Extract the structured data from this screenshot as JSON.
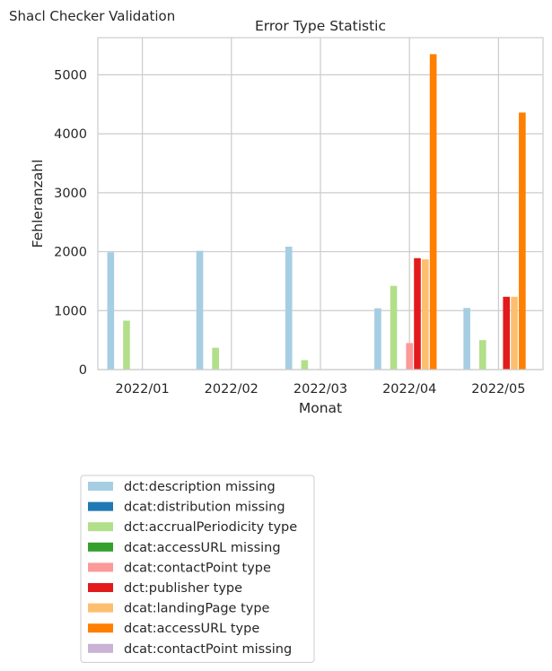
{
  "page": {
    "title": "Shacl Checker Validation"
  },
  "chart_data": {
    "type": "bar",
    "title": "Error Type Statistic",
    "xlabel": "Monat",
    "ylabel": "Fehleranzahl",
    "categories": [
      "2022/01",
      "2022/02",
      "2022/03",
      "2022/04",
      "2022/05"
    ],
    "ylim": [
      0,
      5630
    ],
    "yticks": [
      0,
      1000,
      2000,
      3000,
      4000,
      5000
    ],
    "grid": true,
    "legend_position": "below",
    "series": [
      {
        "name": "dct:description missing",
        "color": "#a6cee3",
        "values": [
          1990,
          2015,
          2085,
          1040,
          1045
        ]
      },
      {
        "name": "dcat:distribution missing",
        "color": "#1f78b4",
        "values": [
          0,
          0,
          0,
          0,
          0
        ]
      },
      {
        "name": "dct:accrualPeriodicity type",
        "color": "#b2df8a",
        "values": [
          830,
          370,
          160,
          1420,
          500
        ]
      },
      {
        "name": "dcat:accessURL missing",
        "color": "#33a02c",
        "values": [
          0,
          0,
          0,
          0,
          0
        ]
      },
      {
        "name": "dcat:contactPoint type",
        "color": "#fb9a99",
        "values": [
          0,
          0,
          0,
          450,
          0
        ]
      },
      {
        "name": "dct:publisher type",
        "color": "#e31a1c",
        "values": [
          0,
          0,
          0,
          1890,
          1235
        ]
      },
      {
        "name": "dcat:landingPage type",
        "color": "#fdbf6f",
        "values": [
          0,
          0,
          0,
          1870,
          1235
        ]
      },
      {
        "name": "dcat:accessURL type",
        "color": "#ff7f00",
        "values": [
          0,
          0,
          0,
          5350,
          4360
        ]
      },
      {
        "name": "dcat:contactPoint missing",
        "color": "#cab2d6",
        "values": [
          0,
          0,
          0,
          0,
          0
        ]
      }
    ]
  }
}
